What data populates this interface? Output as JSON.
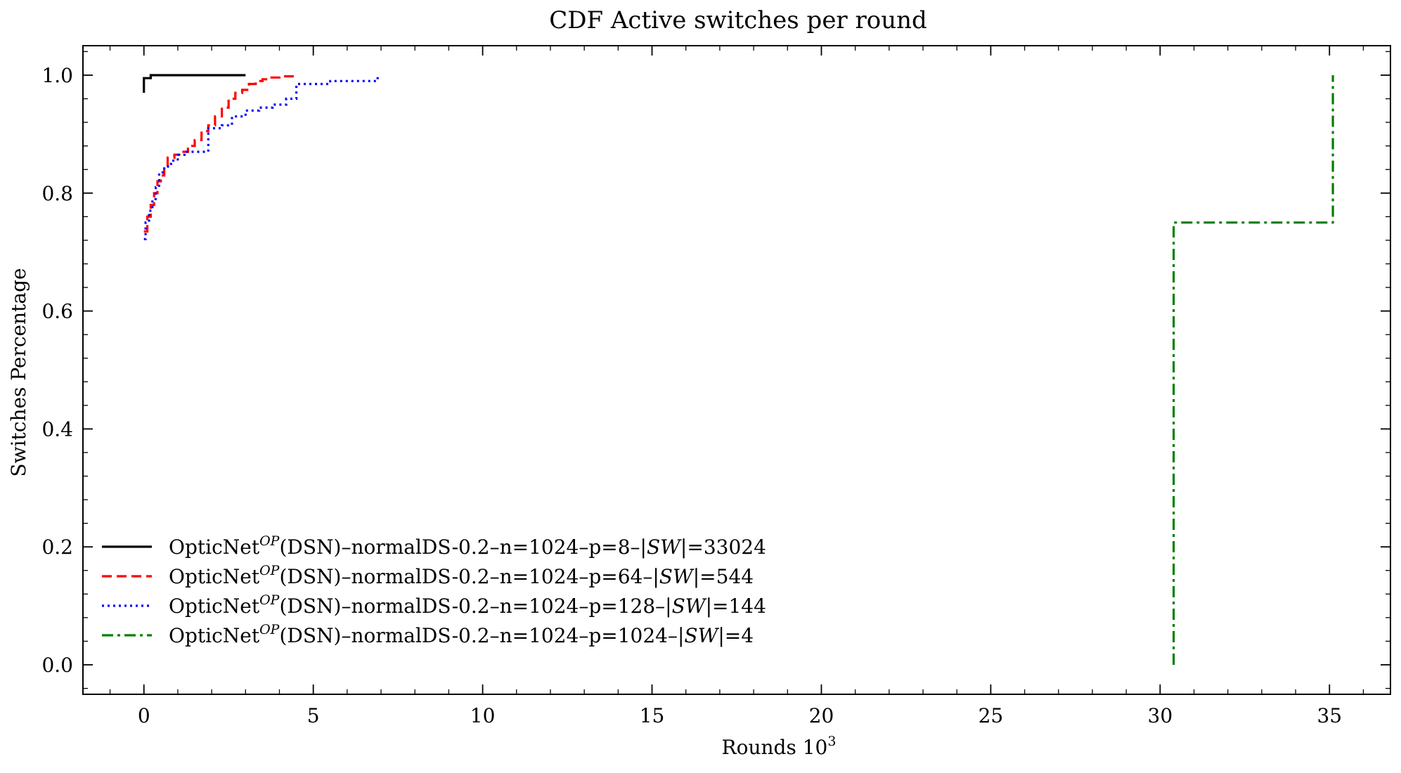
{
  "chart_data": {
    "type": "line",
    "title": "CDF Active switches per round",
    "xlabel": "Rounds 10",
    "xlabel_superscript": "3",
    "ylabel": "Switches Percentage",
    "xlim": [
      -1.8,
      36.8
    ],
    "ylim": [
      -0.05,
      1.05
    ],
    "xticks": [
      0,
      5,
      10,
      15,
      20,
      25,
      30,
      35
    ],
    "xtick_labels": [
      "0",
      "5",
      "10",
      "15",
      "20",
      "25",
      "30",
      "35"
    ],
    "yticks": [
      0.0,
      0.2,
      0.4,
      0.6,
      0.8,
      1.0
    ],
    "ytick_labels": [
      "0.0",
      "0.2",
      "0.4",
      "0.6",
      "0.8",
      "1.0"
    ],
    "grid": false,
    "legend_position": "lower-left",
    "step": true,
    "series": [
      {
        "name": "OpticNet^{OP}(DSN)–normalDS-0.2–n=1024–p=8–|SW|=33024",
        "legend_prefix": "OpticNet",
        "legend_sup": "OP",
        "legend_mid": "(DSN)–normalDS-0.2–n=1024–p=8–|",
        "legend_italic": "SW",
        "legend_suffix": "|=33024",
        "color": "#000000",
        "dash": "solid",
        "x": [
          0.0,
          0.0,
          0.2,
          3.0
        ],
        "y": [
          0.97,
          0.995,
          1.0,
          1.0
        ]
      },
      {
        "name": "OpticNet^{OP}(DSN)–normalDS-0.2–n=1024–p=64–|SW|=544",
        "legend_prefix": "OpticNet",
        "legend_sup": "OP",
        "legend_mid": "(DSN)–normalDS-0.2–n=1024–p=64–|",
        "legend_italic": "SW",
        "legend_suffix": "|=544",
        "color": "#ff0000",
        "dash": "dashed",
        "x": [
          0.0,
          0.1,
          0.2,
          0.3,
          0.4,
          0.5,
          0.6,
          0.7,
          0.9,
          1.1,
          1.3,
          1.5,
          1.7,
          1.9,
          2.1,
          2.3,
          2.5,
          2.7,
          2.9,
          3.1,
          3.3,
          3.5,
          3.7,
          4.0,
          4.5
        ],
        "y": [
          0.735,
          0.76,
          0.78,
          0.8,
          0.82,
          0.83,
          0.845,
          0.86,
          0.865,
          0.87,
          0.88,
          0.89,
          0.905,
          0.915,
          0.93,
          0.945,
          0.96,
          0.97,
          0.975,
          0.985,
          0.99,
          0.993,
          0.996,
          0.998,
          1.0
        ]
      },
      {
        "name": "OpticNet^{OP}(DSN)–normalDS-0.2–n=1024–p=128–|SW|=144",
        "legend_prefix": "OpticNet",
        "legend_sup": "OP",
        "legend_mid": "(DSN)–normalDS-0.2–n=1024–p=128–|",
        "legend_italic": "SW",
        "legend_suffix": "|=144",
        "color": "#0000ff",
        "dash": "dotted",
        "x": [
          0.0,
          0.05,
          0.15,
          0.25,
          0.35,
          0.45,
          0.6,
          0.8,
          1.0,
          1.2,
          1.9,
          2.3,
          2.6,
          3.0,
          3.4,
          3.8,
          4.2,
          4.5,
          5.0,
          5.5,
          6.0,
          6.9
        ],
        "y": [
          0.722,
          0.75,
          0.77,
          0.79,
          0.81,
          0.835,
          0.845,
          0.855,
          0.865,
          0.87,
          0.91,
          0.915,
          0.93,
          0.94,
          0.945,
          0.95,
          0.96,
          0.985,
          0.985,
          0.99,
          0.99,
          1.0
        ]
      },
      {
        "name": "OpticNet^{OP}(DSN)–normalDS-0.2–n=1024–p=1024–|SW|=4",
        "legend_prefix": "OpticNet",
        "legend_sup": "OP",
        "legend_mid": "(DSN)–normalDS-0.2–n=1024–p=1024–|",
        "legend_italic": "SW",
        "legend_suffix": "|=4",
        "color": "#008000",
        "dash": "dashdot",
        "x": [
          30.4,
          30.4,
          35.1,
          35.1
        ],
        "y": [
          0.0,
          0.75,
          0.75,
          1.0
        ]
      }
    ]
  }
}
